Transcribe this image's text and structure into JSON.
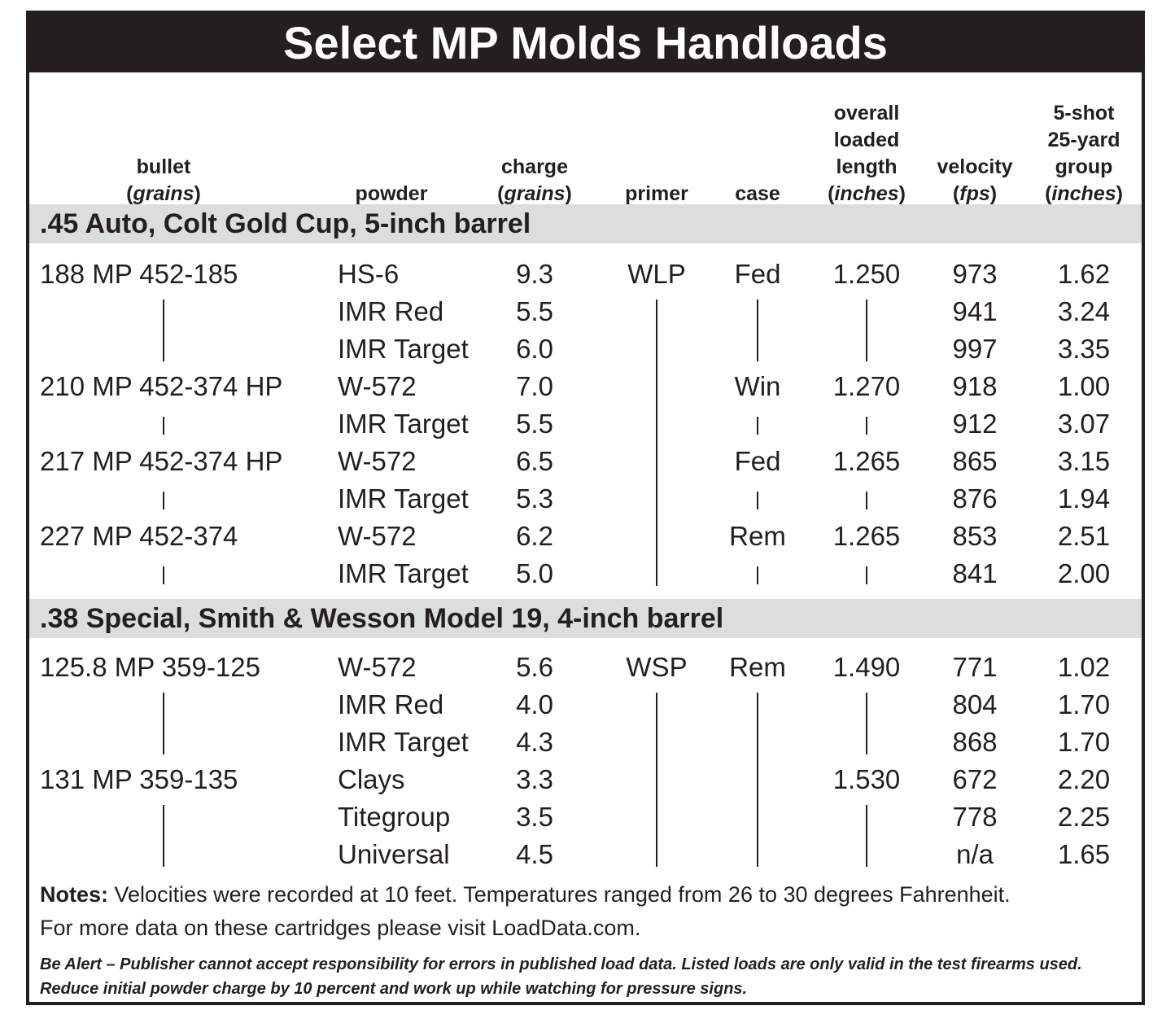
{
  "title": "Select MP Molds Handloads",
  "columns": {
    "bullet": [
      "bullet",
      "(grains)"
    ],
    "powder": [
      "powder"
    ],
    "charge": [
      "charge",
      "(grains)"
    ],
    "primer": [
      "primer"
    ],
    "case": [
      "case"
    ],
    "oal": [
      "overall",
      "loaded",
      "length",
      "(inches)"
    ],
    "velocity": [
      "velocity",
      "(fps)"
    ],
    "group": [
      "5-shot",
      "25-yard",
      "group",
      "(inches)"
    ]
  },
  "sections": [
    {
      "heading": ".45 Auto, Colt Gold Cup, 5-inch barrel",
      "rows": [
        {
          "bullet": "188 MP 452-185",
          "powder": "HS-6",
          "charge": "9.3",
          "primer": "WLP",
          "case": "Fed",
          "oal": "1.250",
          "velocity": "973",
          "group": "1.62"
        },
        {
          "bullet": "",
          "powder": "IMR Red",
          "charge": "5.5",
          "primer": "",
          "case": "",
          "oal": "",
          "velocity": "941",
          "group": "3.24"
        },
        {
          "bullet": "",
          "powder": "IMR Target",
          "charge": "6.0",
          "primer": "",
          "case": "",
          "oal": "",
          "velocity": "997",
          "group": "3.35"
        },
        {
          "bullet": "210 MP 452-374 HP",
          "powder": "W-572",
          "charge": "7.0",
          "primer": "",
          "case": "Win",
          "oal": "1.270",
          "velocity": "918",
          "group": "1.00"
        },
        {
          "bullet": "",
          "powder": "IMR Target",
          "charge": "5.5",
          "primer": "",
          "case": "",
          "oal": "",
          "velocity": "912",
          "group": "3.07"
        },
        {
          "bullet": "217 MP 452-374 HP",
          "powder": "W-572",
          "charge": "6.5",
          "primer": "",
          "case": "Fed",
          "oal": "1.265",
          "velocity": "865",
          "group": "3.15"
        },
        {
          "bullet": "",
          "powder": "IMR Target",
          "charge": "5.3",
          "primer": "",
          "case": "",
          "oal": "",
          "velocity": "876",
          "group": "1.94"
        },
        {
          "bullet": "227 MP 452-374",
          "powder": "W-572",
          "charge": "6.2",
          "primer": "",
          "case": "Rem",
          "oal": "1.265",
          "velocity": "853",
          "group": "2.51"
        },
        {
          "bullet": "",
          "powder": "IMR Target",
          "charge": "5.0",
          "primer": "",
          "case": "",
          "oal": "",
          "velocity": "841",
          "group": "2.00"
        }
      ]
    },
    {
      "heading": ".38 Special, Smith & Wesson Model 19, 4-inch barrel",
      "rows": [
        {
          "bullet": "125.8 MP 359-125",
          "powder": "W-572",
          "charge": "5.6",
          "primer": "WSP",
          "case": "Rem",
          "oal": "1.490",
          "velocity": "771",
          "group": "1.02"
        },
        {
          "bullet": "",
          "powder": "IMR Red",
          "charge": "4.0",
          "primer": "",
          "case": "",
          "oal": "",
          "velocity": "804",
          "group": "1.70"
        },
        {
          "bullet": "",
          "powder": "IMR Target",
          "charge": "4.3",
          "primer": "",
          "case": "",
          "oal": "",
          "velocity": "868",
          "group": "1.70"
        },
        {
          "bullet": "131 MP 359-135",
          "powder": "Clays",
          "charge": "3.3",
          "primer": "",
          "case": "",
          "oal": "1.530",
          "velocity": "672",
          "group": "2.20"
        },
        {
          "bullet": "",
          "powder": "Titegroup",
          "charge": "3.5",
          "primer": "",
          "case": "",
          "oal": "",
          "velocity": "778",
          "group": "2.25"
        },
        {
          "bullet": "",
          "powder": "Universal",
          "charge": "4.5",
          "primer": "",
          "case": "",
          "oal": "",
          "velocity": "n/a",
          "group": "1.65"
        }
      ]
    }
  ],
  "notes": {
    "label": "Notes:",
    "line1": " Velocities were recorded at 10 feet. Temperatures ranged from 26 to 30 degrees Fahrenheit.",
    "line2": "For more data on these cartridges please visit LoadData.com."
  },
  "alert": {
    "line1": "Be Alert – Publisher cannot accept responsibility for errors in published load data. Listed loads are only valid in the test firearms used.",
    "line2": "Reduce initial powder charge by 10 percent and work up while watching for pressure signs."
  }
}
